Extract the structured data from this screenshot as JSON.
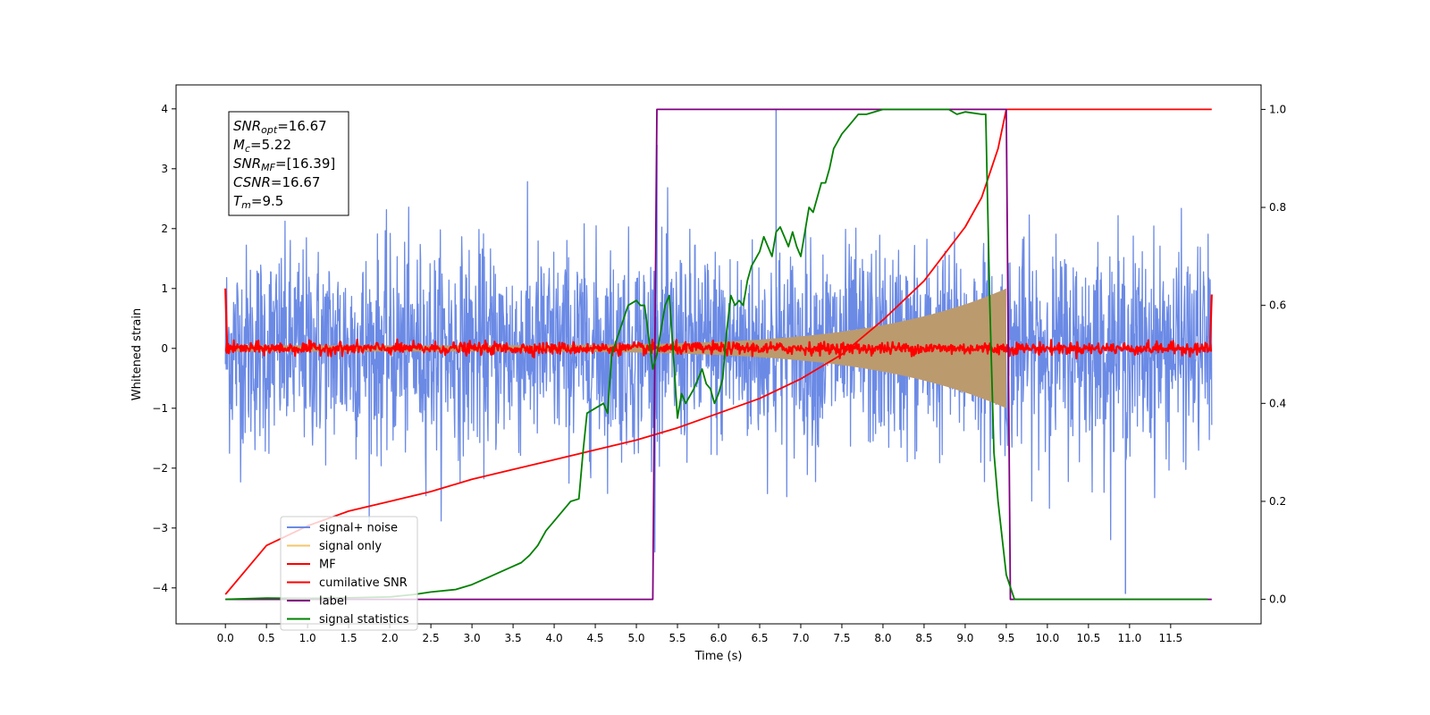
{
  "chart_data": {
    "type": "line",
    "title": "",
    "xlabel": "Time (s)",
    "ylabel": "Whitened strain",
    "xlim": [
      -0.6,
      12.6
    ],
    "ylim": [
      -4.6,
      4.4
    ],
    "y2lim": [
      -0.05,
      1.05
    ],
    "grid": false,
    "legend_position": "lower-left",
    "x_ticks": [
      "0.0",
      "0.5",
      "1.0",
      "1.5",
      "2.0",
      "2.5",
      "3.0",
      "3.5",
      "4.0",
      "4.5",
      "5.0",
      "5.5",
      "6.0",
      "6.5",
      "7.0",
      "7.5",
      "8.0",
      "8.5",
      "9.0",
      "9.5",
      "10.0",
      "10.5",
      "11.0",
      "11.5"
    ],
    "y_ticks": [
      "4",
      "3",
      "2",
      "1",
      "0",
      "−1",
      "−2",
      "−3",
      "−4"
    ],
    "y2_ticks": [
      "1.0",
      "0.8",
      "0.6",
      "0.4",
      "0.2",
      "0.0"
    ],
    "annotations": [
      {
        "prefix": "SNR",
        "sub": "opt",
        "suffix": "=16.67"
      },
      {
        "prefix": "M",
        "sub": "c",
        "suffix": "=5.22"
      },
      {
        "prefix": "SNR",
        "sub": "MF",
        "suffix": "=[16.39]"
      },
      {
        "prefix": "CSNR",
        "sub": "",
        "suffix": "=16.67"
      },
      {
        "prefix": "T",
        "sub": "m",
        "suffix": "=9.5"
      }
    ],
    "series": [
      {
        "name": "signal+ noise",
        "color": "#6b8ae5",
        "axis": "left",
        "style": "noise",
        "x_range": [
          0.0,
          12.0
        ],
        "noise_scale": 0.85,
        "spikes": [
          [
            6.7,
            4.0
          ],
          [
            10.95,
            -4.1
          ],
          [
            5.25,
            3.4
          ]
        ]
      },
      {
        "name": "signal only",
        "color": "#f5c66a",
        "axis": "left",
        "style": "chirp",
        "x_range": [
          0.0,
          9.5
        ],
        "amplitude_start": 0.05,
        "amplitude_end": 1.0
      },
      {
        "name": "MF",
        "color": "#ff0000",
        "axis": "left",
        "style": "mf",
        "x_range": [
          0.0,
          12.0
        ],
        "noise_scale": 0.05
      },
      {
        "name": "cumilative SNR",
        "color": "#ff0000",
        "axis": "right",
        "x": [
          0.0,
          0.5,
          1.0,
          1.5,
          2.0,
          2.5,
          3.0,
          3.5,
          4.0,
          4.5,
          5.0,
          5.5,
          6.0,
          6.5,
          7.0,
          7.5,
          8.0,
          8.5,
          9.0,
          9.2,
          9.4,
          9.5,
          9.5,
          12.0
        ],
        "values": [
          0.01,
          0.11,
          0.15,
          0.18,
          0.2,
          0.22,
          0.245,
          0.265,
          0.285,
          0.305,
          0.325,
          0.35,
          0.38,
          0.41,
          0.45,
          0.5,
          0.57,
          0.65,
          0.76,
          0.82,
          0.92,
          1.0,
          1.0,
          1.0
        ]
      },
      {
        "name": "label",
        "color": "#800080",
        "axis": "right",
        "x": [
          0.0,
          5.2,
          5.25,
          9.5,
          9.55,
          12.0
        ],
        "values": [
          0.0,
          0.0,
          1.0,
          1.0,
          0.0,
          0.0
        ]
      },
      {
        "name": "signal statistics",
        "color": "#008000",
        "axis": "right",
        "x": [
          0.0,
          0.5,
          1.0,
          1.5,
          2.0,
          2.3,
          2.5,
          2.8,
          3.0,
          3.2,
          3.4,
          3.6,
          3.7,
          3.8,
          3.9,
          4.0,
          4.1,
          4.2,
          4.3,
          4.35,
          4.4,
          4.5,
          4.6,
          4.65,
          4.7,
          4.8,
          4.9,
          5.0,
          5.05,
          5.1,
          5.2,
          5.25,
          5.3,
          5.35,
          5.4,
          5.45,
          5.5,
          5.55,
          5.6,
          5.7,
          5.8,
          5.85,
          5.9,
          5.95,
          6.0,
          6.05,
          6.1,
          6.15,
          6.2,
          6.25,
          6.3,
          6.35,
          6.4,
          6.5,
          6.55,
          6.6,
          6.65,
          6.7,
          6.75,
          6.8,
          6.85,
          6.9,
          6.95,
          7.0,
          7.05,
          7.1,
          7.15,
          7.2,
          7.25,
          7.3,
          7.35,
          7.4,
          7.5,
          7.6,
          7.7,
          7.8,
          8.0,
          8.5,
          8.8,
          8.9,
          9.0,
          9.2,
          9.25,
          9.3,
          9.35,
          9.4,
          9.5,
          9.6,
          10.0,
          11.0,
          11.95
        ],
        "values": [
          0.0,
          0.0025,
          0.002,
          0.003,
          0.005,
          0.01,
          0.015,
          0.02,
          0.03,
          0.045,
          0.06,
          0.075,
          0.09,
          0.11,
          0.14,
          0.16,
          0.18,
          0.2,
          0.205,
          0.3,
          0.38,
          0.39,
          0.4,
          0.38,
          0.5,
          0.55,
          0.6,
          0.61,
          0.6,
          0.6,
          0.47,
          0.5,
          0.55,
          0.6,
          0.62,
          0.5,
          0.37,
          0.42,
          0.4,
          0.43,
          0.47,
          0.44,
          0.43,
          0.4,
          0.42,
          0.45,
          0.55,
          0.62,
          0.6,
          0.61,
          0.6,
          0.65,
          0.68,
          0.71,
          0.74,
          0.72,
          0.7,
          0.75,
          0.76,
          0.74,
          0.72,
          0.75,
          0.72,
          0.7,
          0.75,
          0.8,
          0.79,
          0.82,
          0.85,
          0.85,
          0.88,
          0.92,
          0.95,
          0.97,
          0.99,
          0.99,
          1.0,
          1.0,
          1.0,
          0.99,
          0.995,
          0.99,
          0.99,
          0.6,
          0.3,
          0.2,
          0.05,
          0.0,
          0.0,
          0.0,
          0.0
        ]
      }
    ]
  }
}
